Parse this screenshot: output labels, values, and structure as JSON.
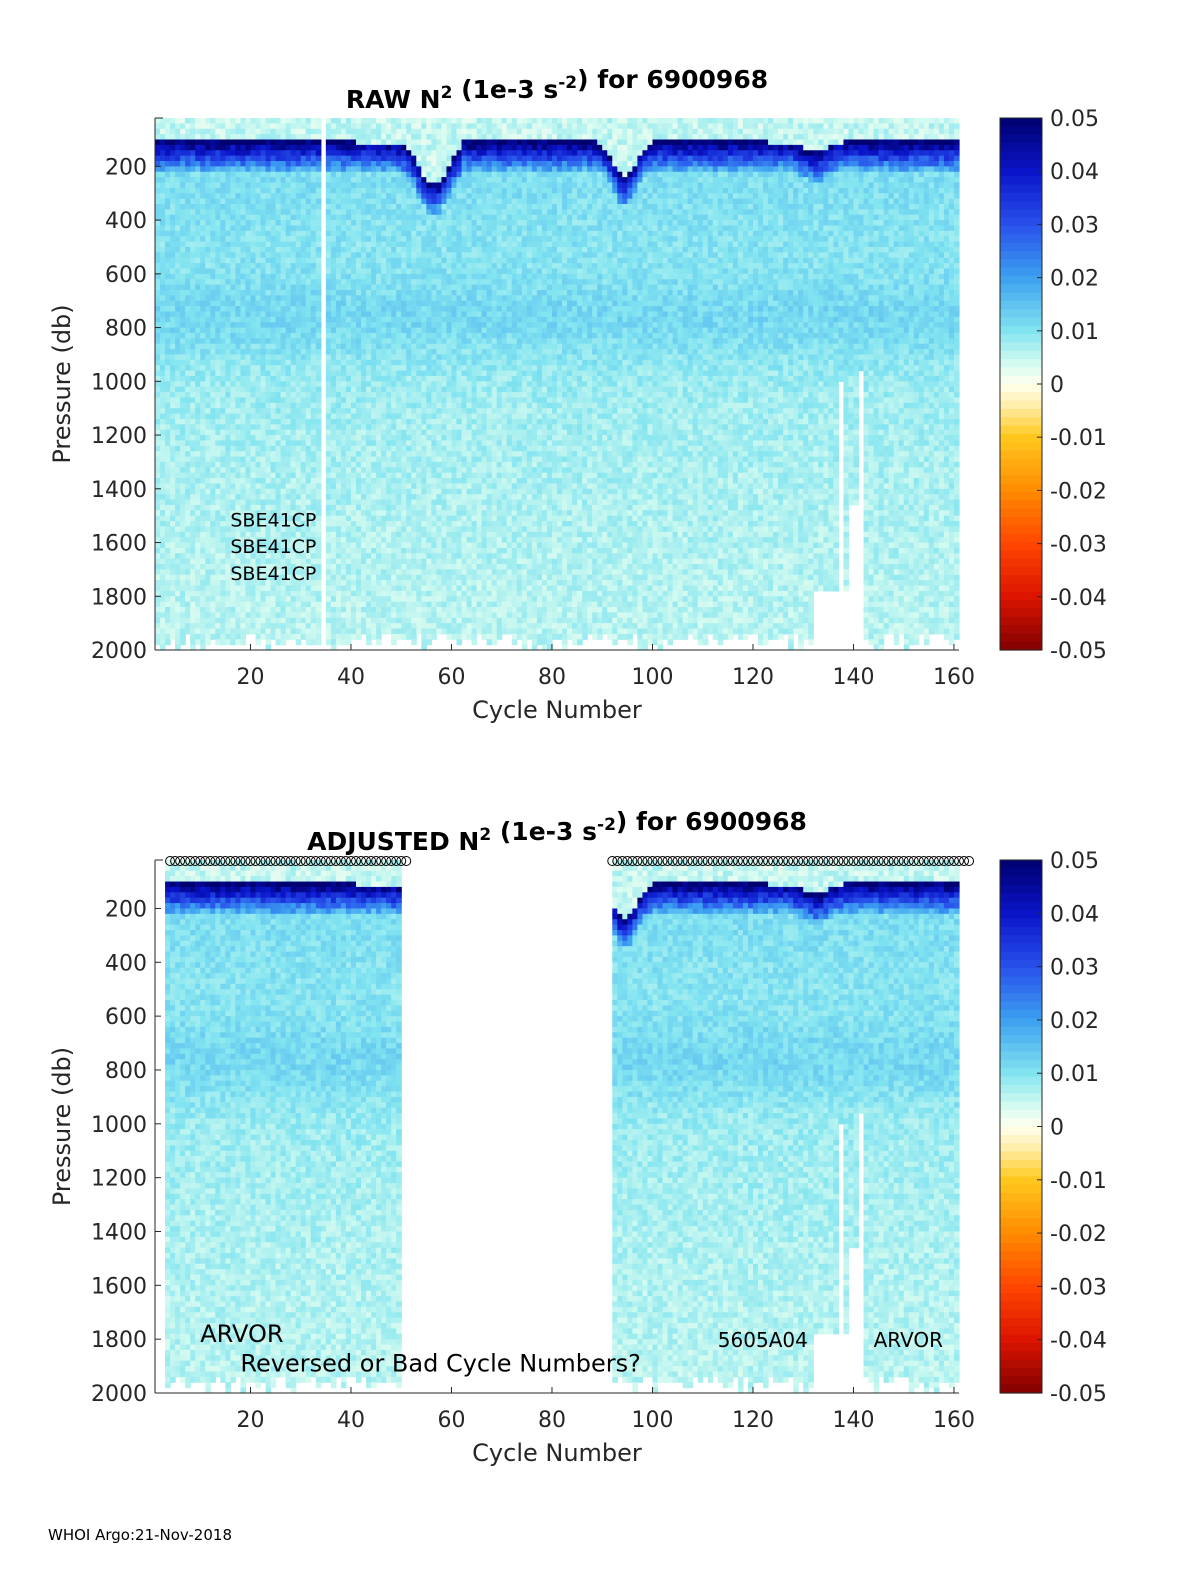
{
  "chart_data": [
    {
      "type": "heatmap",
      "panel": "raw",
      "title_prefix": "RAW N",
      "title_sup1": "2",
      "title_mid": " (1e-3 s",
      "title_sup2": "-2",
      "title_suffix": ") for 6900968",
      "xlabel": "Cycle Number",
      "ylabel": "Pressure (db)",
      "xlim": [
        1,
        161
      ],
      "ylim": [
        2000,
        0
      ],
      "x_ticks": [
        20,
        40,
        60,
        80,
        100,
        120,
        140,
        160
      ],
      "y_ticks": [
        200,
        400,
        600,
        800,
        1000,
        1200,
        1400,
        1600,
        1800,
        2000
      ],
      "colorbar": {
        "clim": [
          -0.05,
          0.05
        ],
        "ticks": [
          "0.05",
          "0.04",
          "0.03",
          "0.02",
          "0.01",
          "0",
          "-0.01",
          "-0.02",
          "-0.03",
          "-0.04",
          "-0.05"
        ],
        "colormap": "blue-cyan-white-yellow-red"
      },
      "missing_cycles": [
        34
      ],
      "no_data_segments": [
        {
          "cycle_from": 132,
          "cycle_to": 142,
          "pressure_from": 1780,
          "pressure_to": 2000
        },
        {
          "cycle_from": 137,
          "cycle_to": 138,
          "pressure_from": 1000,
          "pressure_to": 2000
        },
        {
          "cycle_from": 139,
          "cycle_to": 141,
          "pressure_from": 1450,
          "pressure_to": 2000
        },
        {
          "cycle_from": 141,
          "cycle_to": 142,
          "pressure_from": 960,
          "pressure_to": 2000
        }
      ],
      "annotations": [
        {
          "text": "SBE41CP",
          "x": 16,
          "y": 1510
        },
        {
          "text": "SBE41CP",
          "x": 16,
          "y": 1610
        },
        {
          "text": "SBE41CP",
          "x": 16,
          "y": 1710
        }
      ],
      "markers": []
    },
    {
      "type": "heatmap",
      "panel": "adjusted",
      "title_prefix": "ADJUSTED N",
      "title_sup1": "2",
      "title_mid": " (1e-3 s",
      "title_sup2": "-2",
      "title_suffix": ") for 6900968",
      "xlabel": "Cycle Number",
      "ylabel": "Pressure (db)",
      "xlim": [
        1,
        161
      ],
      "ylim": [
        2000,
        0
      ],
      "x_ticks": [
        20,
        40,
        60,
        80,
        100,
        120,
        140,
        160
      ],
      "y_ticks": [
        200,
        400,
        600,
        800,
        1000,
        1200,
        1400,
        1600,
        1800,
        2000
      ],
      "colorbar": {
        "clim": [
          -0.05,
          0.05
        ],
        "ticks": [
          "0.05",
          "0.04",
          "0.03",
          "0.02",
          "0.01",
          "0",
          "-0.01",
          "-0.02",
          "-0.03",
          "-0.04",
          "-0.05"
        ],
        "colormap": "blue-cyan-white-yellow-red"
      },
      "data_cycle_ranges": [
        [
          3,
          50
        ],
        [
          92,
          161
        ]
      ],
      "no_data_segments": [
        {
          "cycle_from": 132,
          "cycle_to": 142,
          "pressure_from": 1780,
          "pressure_to": 2000
        },
        {
          "cycle_from": 137,
          "cycle_to": 138,
          "pressure_from": 1000,
          "pressure_to": 2000
        },
        {
          "cycle_from": 139,
          "cycle_to": 141,
          "pressure_from": 1450,
          "pressure_to": 2000
        },
        {
          "cycle_from": 141,
          "cycle_to": 142,
          "pressure_from": 960,
          "pressure_to": 2000
        }
      ],
      "annotations": [
        {
          "text": "ARVOR",
          "x": 10,
          "y": 1780,
          "size": "large"
        },
        {
          "text": "Reversed or Bad Cycle Numbers?",
          "x": 18,
          "y": 1890,
          "size": "large"
        },
        {
          "text": "5605A04",
          "x": 113,
          "y": 1800,
          "size": "small"
        },
        {
          "text": "ARVOR",
          "x": 144,
          "y": 1800,
          "size": "small"
        }
      ],
      "markers": {
        "shape": "circle",
        "pressure": 0,
        "cycle_ranges": [
          [
            4,
            51
          ],
          [
            92,
            163
          ]
        ]
      }
    }
  ],
  "footer": "WHOI Argo:21-Nov-2018"
}
